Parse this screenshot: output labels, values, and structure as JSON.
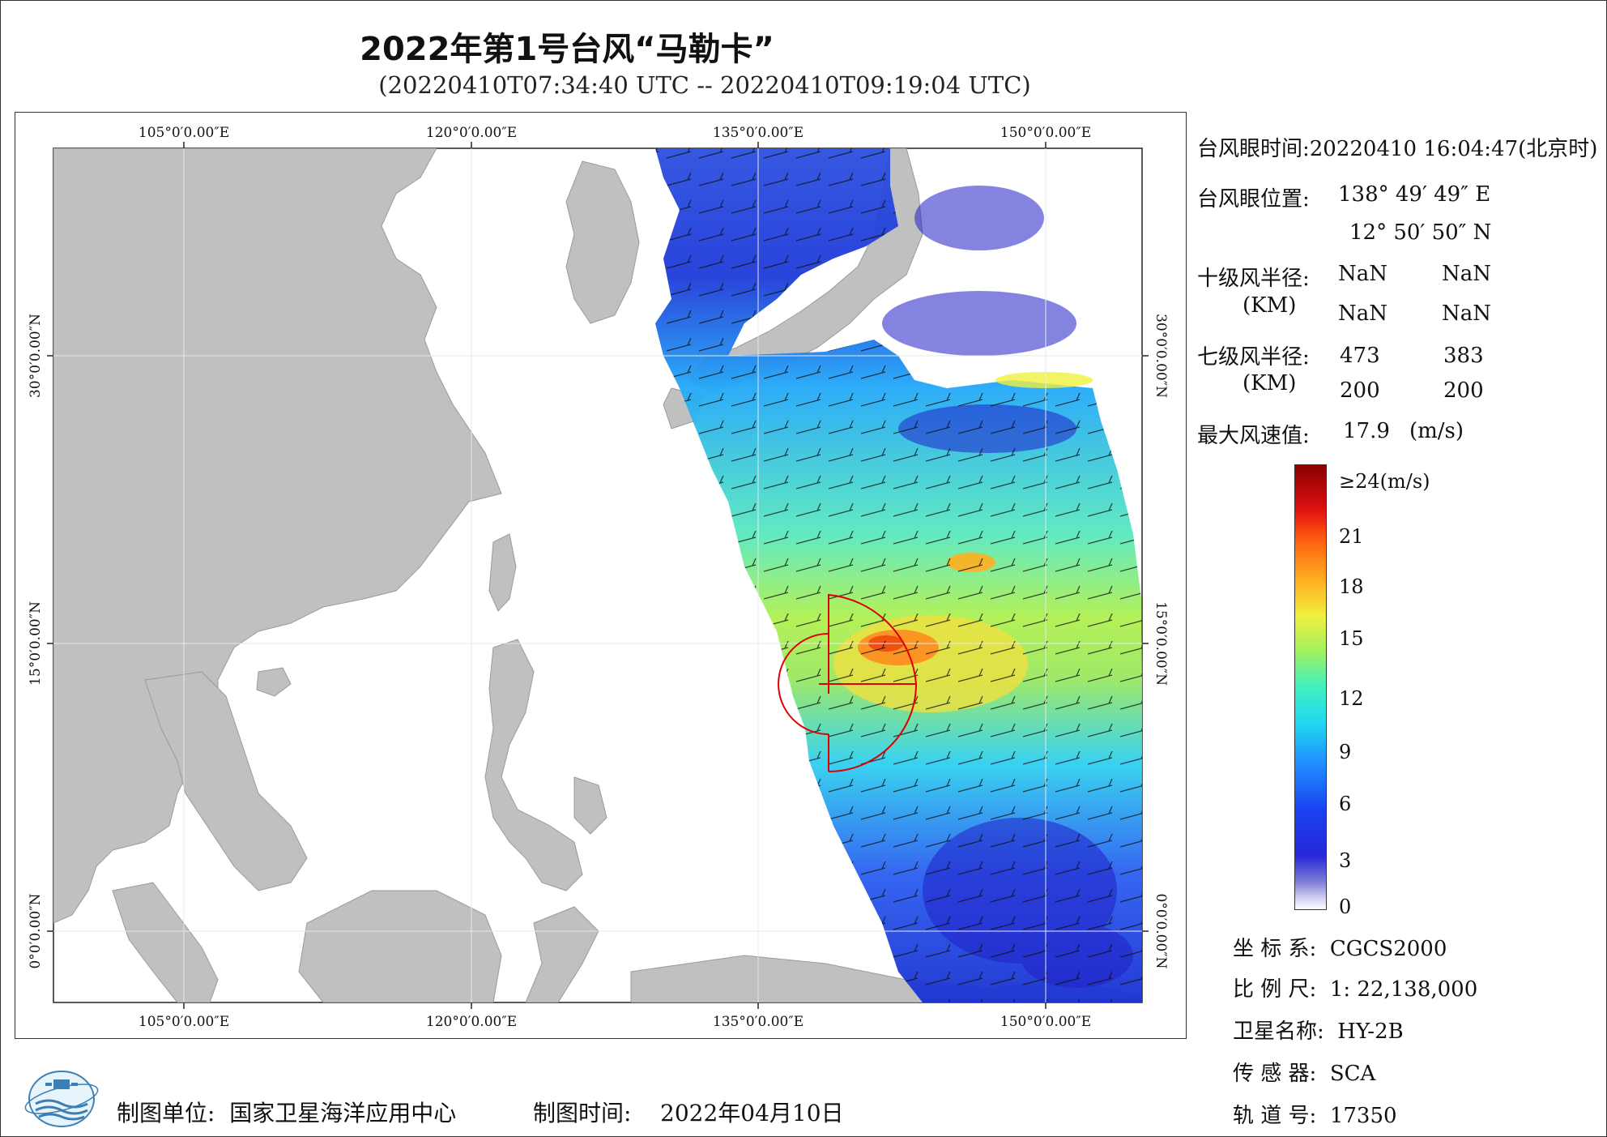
{
  "title": "2022年第1号台风“马勒卡”",
  "subtitle": "(20220410T07:34:40 UTC -- 20220410T09:19:04 UTC)",
  "map": {
    "lon_labels": [
      "105°0′0.00″E",
      "120°0′0.00″E",
      "135°0′0.00″E",
      "150°0′0.00″E"
    ],
    "lat_labels": [
      "30°0′0.00″N",
      "15°0′0.00″N",
      "0°0′0.00″N"
    ],
    "land_color": "#c0c0c0",
    "typhoon_marker_color": "#e00000"
  },
  "info": {
    "eye_time_label": "台风眼时间:",
    "eye_time_value": "20220410 16:04:47(北京时)",
    "eye_pos_label": "台风眼位置:",
    "eye_lon": "138° 49′ 49″ E",
    "eye_lat": "12° 50′ 50″ N",
    "r10_label": "十级风半径:",
    "r10_unit": "(KM)",
    "r10_values": [
      "NaN",
      "NaN",
      "NaN",
      "NaN"
    ],
    "r7_label": "七级风半径:",
    "r7_unit": "(KM)",
    "r7_values": [
      "473",
      "383",
      "200",
      "200"
    ],
    "max_wind_label": "最大风速值:",
    "max_wind_value": "17.9",
    "max_wind_unit": "(m/s)"
  },
  "colorbar": {
    "top_label": "≥24(m/s)",
    "ticks": [
      "21",
      "18",
      "15",
      "12",
      "9",
      "6",
      "3",
      "0"
    ]
  },
  "meta": {
    "crs_label": "坐 标 系:",
    "crs_value": "CGCS2000",
    "scale_label": "比 例 尺:",
    "scale_value": "1: 22,138,000",
    "sat_label": "卫星名称:",
    "sat_value": "HY-2B",
    "sensor_label": "传 感 器:",
    "sensor_value": "SCA",
    "orbit_label": "轨 道 号:",
    "orbit_value": "17350"
  },
  "footer": {
    "unit_label": "制图单位:",
    "unit_value": "国家卫星海洋应用中心",
    "time_label": "制图时间:",
    "time_value": "2022年04月10日"
  }
}
